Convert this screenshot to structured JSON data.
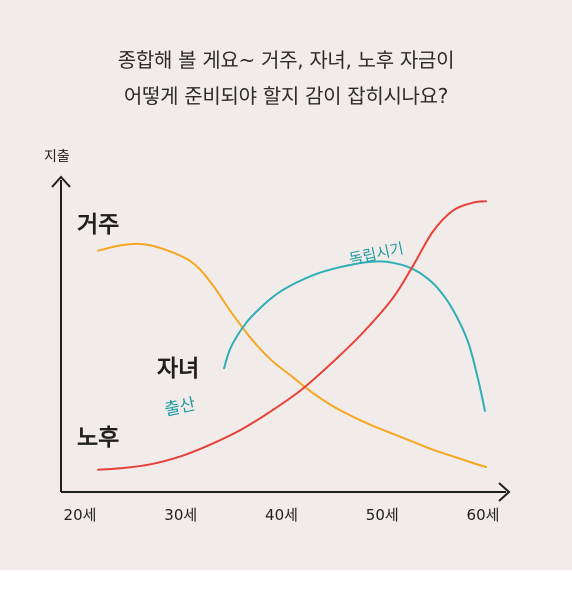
{
  "title_lines": [
    "종합해 볼 게요~ 거주, 자녀, 노후 자금이",
    "어떻게 준비되야 할지 감이 잡히시나요?"
  ],
  "chart_data": {
    "type": "line",
    "ylabel": "지출",
    "xlabel": "",
    "x_ticks": [
      "20세",
      "30세",
      "40세",
      "50세",
      "60세"
    ],
    "xlim": [
      20,
      63
    ],
    "ylim": [
      0,
      100
    ],
    "grid": false,
    "series": [
      {
        "name": "거주",
        "color": "#f5a623",
        "points": [
          [
            21.8,
            84
          ],
          [
            24,
            86
          ],
          [
            26,
            86.5
          ],
          [
            28,
            85
          ],
          [
            31,
            80
          ],
          [
            33,
            72
          ],
          [
            35,
            61
          ],
          [
            37,
            51
          ],
          [
            39,
            43
          ],
          [
            41,
            37
          ],
          [
            43,
            31
          ],
          [
            45,
            26
          ],
          [
            47,
            22
          ],
          [
            49,
            18.5
          ],
          [
            51,
            15.5
          ],
          [
            53,
            12.5
          ],
          [
            55,
            9.5
          ],
          [
            57,
            7
          ],
          [
            59,
            4.5
          ],
          [
            60.3,
            3
          ]
        ]
      },
      {
        "name": "자녀",
        "color": "#2eaeb5",
        "points": [
          [
            34.3,
            40
          ],
          [
            35,
            48
          ],
          [
            36.5,
            57
          ],
          [
            38.3,
            64
          ],
          [
            40,
            69
          ],
          [
            42,
            73
          ],
          [
            44,
            76
          ],
          [
            46,
            78
          ],
          [
            48,
            79.5
          ],
          [
            49.7,
            80
          ],
          [
            51,
            79.5
          ],
          [
            52.5,
            78
          ],
          [
            54,
            75
          ],
          [
            55.5,
            70
          ],
          [
            57,
            62
          ],
          [
            58.5,
            50
          ],
          [
            59.5,
            36
          ],
          [
            60.2,
            24
          ]
        ]
      },
      {
        "name": "노후",
        "color": "#e8413a",
        "points": [
          [
            21.8,
            2
          ],
          [
            24,
            2.5
          ],
          [
            27,
            4
          ],
          [
            30,
            7
          ],
          [
            33,
            11.5
          ],
          [
            36,
            17
          ],
          [
            39,
            24
          ],
          [
            42,
            32
          ],
          [
            45,
            42
          ],
          [
            48,
            53
          ],
          [
            51,
            66
          ],
          [
            53,
            78
          ],
          [
            55,
            91
          ],
          [
            57,
            99
          ],
          [
            59,
            102
          ],
          [
            60.3,
            102.5
          ]
        ]
      }
    ],
    "annotations": [
      "출산",
      "독립시기"
    ]
  }
}
